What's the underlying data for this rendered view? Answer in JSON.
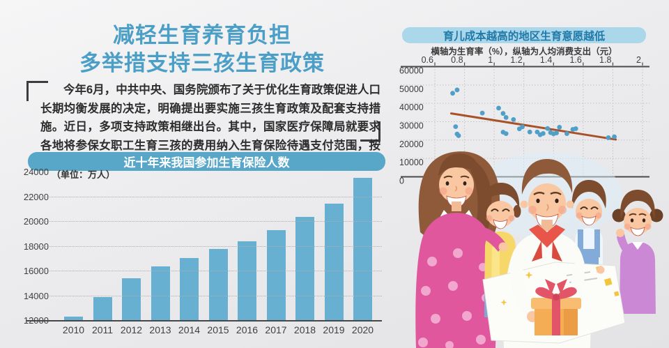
{
  "header": {
    "title_line1": "减轻生育养育负担",
    "title_line2": "多举措支持三孩生育政策",
    "title_color": "#4b9fc6"
  },
  "intro": {
    "paragraph": "今年6月，中共中央、国务院颁布了关于优化生育政策促进人口长期均衡发展的决定，明确提出要实施三孩生育政策及配套支持措施。近日，多项支持政策相继出台。其中，国家医疗保障局就要求各地将参保女职工生育三孩的费用纳入生育保险待遇支付范围，按规定及时、足额给付生育医疗费用和生育津贴待遇。"
  },
  "chart_data": [
    {
      "type": "bar",
      "title": "近十年来我国参加生育保险人数",
      "unit_label": "（单位：万人）",
      "categories": [
        "2010",
        "2011",
        "2012",
        "2013",
        "2014",
        "2015",
        "2016",
        "2017",
        "2018",
        "2019",
        "2020"
      ],
      "values": [
        12350,
        13900,
        15450,
        16400,
        17050,
        17800,
        18450,
        19300,
        20400,
        21450,
        23550
      ],
      "ylim": [
        12000,
        24000
      ],
      "yticks": [
        12000,
        14000,
        16000,
        18000,
        20000,
        22000,
        24000
      ],
      "grid": "dotted horizontal",
      "legend": "none",
      "bar_color": "#68b0d2",
      "title_bar_bg": "#58a7c9",
      "title_text_color": "#ffffff"
    },
    {
      "type": "scatter",
      "title": "育儿成本越高的地区生育意愿越低",
      "subtitle": "横轴为生育率（%），纵轴为人均消费支出（元）",
      "xlabel": "生育率（%）",
      "ylabel": "人均消费支出（元）",
      "axis_note": "x-axis drawn along the top of the plot",
      "xtick_labels": [
        "0.6",
        "0.8",
        "1",
        "1.2",
        "1.4",
        "1.6",
        "1.8",
        "2"
      ],
      "xtick_values": [
        0.6,
        0.8,
        1.0,
        1.2,
        1.4,
        1.6,
        1.8,
        2.0
      ],
      "yticks": [
        0,
        10000,
        20000,
        30000,
        40000,
        50000,
        60000
      ],
      "ylim": [
        0,
        60000
      ],
      "grid": "dotted both axes",
      "points": [
        [
          0.72,
          45500
        ],
        [
          0.75,
          47300
        ],
        [
          0.74,
          27300
        ],
        [
          0.75,
          23300
        ],
        [
          0.76,
          22400
        ],
        [
          0.92,
          34700
        ],
        [
          1.03,
          37400
        ],
        [
          1.06,
          34500
        ],
        [
          1.08,
          32300
        ],
        [
          1.06,
          24300
        ],
        [
          1.08,
          23500
        ],
        [
          1.13,
          31200
        ],
        [
          1.17,
          26100
        ],
        [
          1.19,
          27200
        ],
        [
          1.24,
          24400
        ],
        [
          1.29,
          24400
        ],
        [
          1.31,
          22900
        ],
        [
          1.33,
          23600
        ],
        [
          1.36,
          26300
        ],
        [
          1.38,
          24100
        ],
        [
          1.4,
          23400
        ],
        [
          1.42,
          23900
        ],
        [
          1.44,
          27000
        ],
        [
          1.49,
          23500
        ],
        [
          1.53,
          25800
        ],
        [
          1.55,
          26200
        ],
        [
          1.77,
          21300
        ],
        [
          1.81,
          21800
        ]
      ],
      "trend_line": {
        "from": [
          0.71,
          34500
        ],
        "to": [
          1.82,
          20300
        ],
        "color": "#a8512a"
      },
      "dot_color": "#4f9fc8",
      "title_bar_bg": "#abd7ea",
      "title_text_color": "#2079a9"
    }
  ],
  "illustration": {
    "alt": "一家五口卡通插画：父母与三个孩子捧着礼物盒"
  }
}
